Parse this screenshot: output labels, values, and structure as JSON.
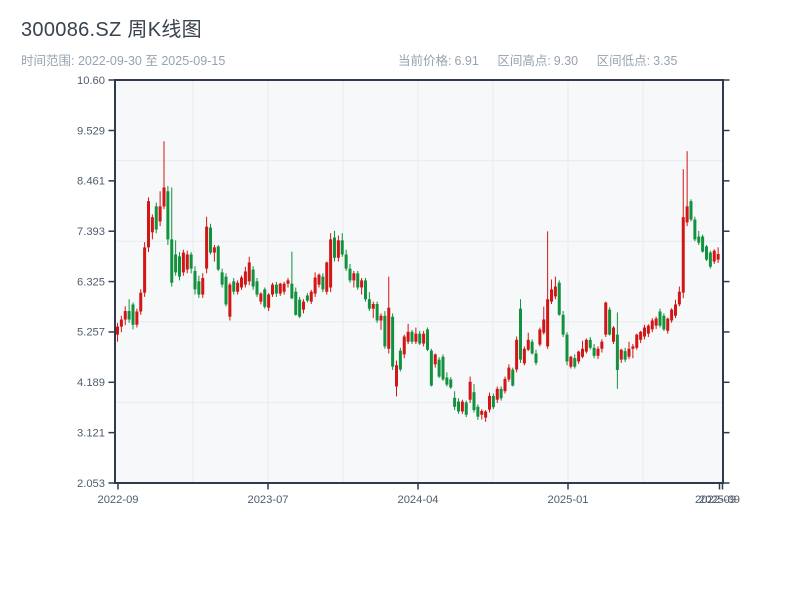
{
  "header": {
    "title": "300086.SZ 周K线图",
    "date_range": "时间范围: 2022-09-30 至 2025-09-15",
    "stats": [
      {
        "label": "当前价格:",
        "value": "6.91"
      },
      {
        "label": "区间高点:",
        "value": "9.30"
      },
      {
        "label": "区间低点:",
        "value": "3.35"
      }
    ]
  },
  "chart_data": {
    "type": "candlestick",
    "title": "300086.SZ 周K线图",
    "frequency": "weekly",
    "symbol": "300086.SZ",
    "current_price": 6.91,
    "range_high": 9.3,
    "range_low": 3.35,
    "x_axis": {
      "tick_labels": [
        "2022-09",
        "2023-07",
        "2024-04",
        "2025-01",
        "2025-09"
      ],
      "overlapped_extra_label": "2022-09"
    },
    "y_axis": {
      "tick_labels": [
        "10.60",
        "9.529",
        "8.461",
        "7.393",
        "6.325",
        "5.257",
        "4.189",
        "3.121",
        "2.053"
      ],
      "range": [
        2.053,
        10.6
      ]
    },
    "colors": {
      "up": "#d21515",
      "down": "#12913e",
      "plot_bg": "#f7f8fa",
      "grid": "#e7eaee",
      "axis": "#2e3b4e",
      "tick_text": "#505d6b"
    },
    "grid": {
      "h_divisions": 5,
      "v_half_tick_spacing_px": 75
    },
    "candles_ohlc": [
      [
        5.2,
        5.45,
        5.05,
        5.37
      ],
      [
        5.37,
        5.6,
        5.25,
        5.52
      ],
      [
        5.52,
        5.8,
        5.4,
        5.7
      ],
      [
        5.7,
        5.95,
        5.45,
        5.52
      ],
      [
        5.84,
        5.88,
        5.31,
        5.41
      ],
      [
        5.41,
        5.75,
        5.35,
        5.69
      ],
      [
        5.69,
        6.16,
        5.62,
        6.09
      ],
      [
        6.09,
        7.16,
        6.0,
        7.05
      ],
      [
        7.05,
        8.11,
        6.95,
        8.03
      ],
      [
        7.37,
        7.75,
        7.22,
        7.69
      ],
      [
        7.92,
        8.0,
        7.35,
        7.43
      ],
      [
        7.6,
        8.24,
        7.5,
        7.92
      ],
      [
        7.92,
        9.3,
        7.86,
        8.32
      ],
      [
        8.24,
        8.35,
        7.1,
        7.22
      ],
      [
        7.22,
        8.32,
        6.22,
        6.3
      ],
      [
        6.9,
        7.2,
        6.45,
        6.52
      ],
      [
        6.86,
        6.95,
        6.35,
        6.43
      ],
      [
        6.52,
        7.0,
        6.45,
        6.94
      ],
      [
        6.58,
        6.98,
        6.5,
        6.9
      ],
      [
        6.9,
        6.95,
        6.5,
        6.6
      ],
      [
        6.55,
        6.65,
        6.05,
        6.16
      ],
      [
        6.33,
        6.45,
        5.98,
        6.05
      ],
      [
        6.05,
        6.5,
        5.98,
        6.4
      ],
      [
        6.6,
        7.7,
        6.5,
        7.49
      ],
      [
        7.47,
        7.55,
        6.9,
        6.94
      ],
      [
        6.94,
        7.1,
        6.75,
        7.05
      ],
      [
        7.07,
        7.1,
        6.55,
        6.58
      ],
      [
        6.52,
        6.6,
        6.2,
        6.26
      ],
      [
        6.43,
        6.5,
        5.8,
        5.84
      ],
      [
        5.58,
        6.3,
        5.5,
        6.26
      ],
      [
        6.33,
        6.4,
        6.05,
        6.11
      ],
      [
        6.11,
        6.35,
        6.05,
        6.3
      ],
      [
        6.2,
        6.45,
        6.15,
        6.41
      ],
      [
        6.26,
        6.64,
        6.2,
        6.54
      ],
      [
        6.33,
        6.85,
        6.25,
        6.73
      ],
      [
        6.58,
        6.65,
        6.15,
        6.22
      ],
      [
        6.33,
        6.4,
        6.0,
        6.05
      ],
      [
        5.9,
        6.1,
        5.84,
        6.07
      ],
      [
        6.16,
        6.2,
        5.75,
        5.79
      ],
      [
        5.77,
        6.08,
        5.7,
        6.05
      ],
      [
        6.05,
        6.3,
        6.0,
        6.26
      ],
      [
        6.26,
        6.32,
        6.0,
        6.07
      ],
      [
        6.07,
        6.3,
        6.02,
        6.28
      ],
      [
        6.11,
        6.32,
        6.05,
        6.28
      ],
      [
        6.28,
        6.4,
        6.2,
        6.35
      ],
      [
        6.28,
        6.96,
        5.95,
        5.97
      ],
      [
        6.11,
        6.2,
        5.6,
        5.62
      ],
      [
        5.94,
        6.0,
        5.55,
        5.58
      ],
      [
        5.73,
        5.95,
        5.65,
        5.9
      ],
      [
        6.03,
        6.08,
        5.88,
        5.92
      ],
      [
        5.9,
        6.15,
        5.85,
        6.11
      ],
      [
        6.07,
        6.52,
        6.0,
        6.41
      ],
      [
        6.26,
        6.5,
        6.2,
        6.47
      ],
      [
        6.43,
        6.5,
        6.1,
        6.16
      ],
      [
        6.11,
        6.75,
        6.05,
        6.73
      ],
      [
        6.2,
        7.35,
        6.1,
        7.22
      ],
      [
        7.26,
        7.4,
        6.75,
        6.83
      ],
      [
        6.83,
        7.3,
        6.75,
        7.2
      ],
      [
        7.2,
        7.35,
        6.85,
        6.9
      ],
      [
        6.9,
        7.0,
        6.55,
        6.6
      ],
      [
        6.6,
        6.7,
        6.3,
        6.35
      ],
      [
        6.35,
        6.55,
        6.2,
        6.5
      ],
      [
        6.5,
        6.55,
        6.15,
        6.2
      ],
      [
        6.2,
        6.4,
        6.05,
        6.35
      ],
      [
        6.35,
        6.4,
        5.9,
        5.95
      ],
      [
        5.95,
        6.1,
        5.7,
        5.75
      ],
      [
        5.75,
        5.9,
        5.55,
        5.85
      ],
      [
        5.85,
        5.9,
        5.45,
        5.5
      ],
      [
        5.5,
        5.65,
        5.3,
        5.6
      ],
      [
        5.6,
        5.7,
        4.9,
        4.95
      ],
      [
        4.9,
        6.43,
        4.8,
        5.77
      ],
      [
        5.58,
        5.65,
        4.45,
        4.52
      ],
      [
        4.1,
        4.65,
        3.89,
        4.55
      ],
      [
        4.86,
        4.92,
        4.42,
        4.46
      ],
      [
        4.78,
        5.2,
        4.7,
        5.16
      ],
      [
        5.05,
        5.43,
        5.0,
        5.26
      ],
      [
        5.26,
        5.3,
        5.0,
        5.05
      ],
      [
        5.05,
        5.35,
        5.0,
        5.22
      ],
      [
        5.22,
        5.28,
        4.98,
        5.01
      ],
      [
        5.01,
        5.28,
        4.95,
        5.22
      ],
      [
        5.31,
        5.35,
        4.85,
        4.88
      ],
      [
        4.86,
        4.9,
        4.1,
        4.12
      ],
      [
        4.57,
        4.8,
        4.5,
        4.78
      ],
      [
        4.67,
        4.72,
        4.28,
        4.31
      ],
      [
        4.73,
        4.78,
        4.22,
        4.25
      ],
      [
        4.29,
        4.4,
        4.1,
        4.14
      ],
      [
        4.25,
        4.3,
        4.05,
        4.08
      ],
      [
        3.86,
        4.0,
        3.6,
        3.67
      ],
      [
        3.78,
        3.85,
        3.52,
        3.57
      ],
      [
        3.57,
        3.82,
        3.52,
        3.78
      ],
      [
        3.76,
        3.8,
        3.45,
        3.5
      ],
      [
        3.82,
        4.31,
        3.75,
        4.2
      ],
      [
        3.98,
        4.15,
        3.55,
        3.6
      ],
      [
        3.67,
        3.72,
        3.39,
        3.46
      ],
      [
        3.5,
        3.62,
        3.4,
        3.58
      ],
      [
        3.44,
        3.6,
        3.35,
        3.57
      ],
      [
        3.61,
        3.97,
        3.55,
        3.9
      ],
      [
        3.9,
        3.95,
        3.62,
        3.66
      ],
      [
        3.82,
        4.1,
        3.75,
        4.05
      ],
      [
        4.05,
        4.1,
        3.8,
        3.85
      ],
      [
        4.0,
        4.31,
        3.95,
        4.26
      ],
      [
        4.25,
        4.57,
        4.2,
        4.5
      ],
      [
        4.46,
        4.5,
        4.1,
        4.12
      ],
      [
        4.46,
        5.16,
        4.4,
        5.09
      ],
      [
        5.75,
        5.95,
        4.6,
        4.67
      ],
      [
        4.59,
        4.95,
        4.55,
        4.9
      ],
      [
        4.88,
        5.24,
        4.85,
        5.09
      ],
      [
        5.05,
        5.1,
        4.78,
        4.8
      ],
      [
        4.8,
        4.88,
        4.55,
        4.6
      ],
      [
        4.99,
        5.35,
        4.95,
        5.31
      ],
      [
        5.24,
        5.79,
        5.2,
        5.52
      ],
      [
        4.95,
        7.39,
        4.9,
        5.95
      ],
      [
        5.9,
        6.37,
        5.85,
        6.16
      ],
      [
        6.01,
        6.43,
        5.95,
        6.22
      ],
      [
        6.3,
        6.35,
        5.6,
        5.62
      ],
      [
        5.62,
        5.7,
        5.15,
        5.2
      ],
      [
        5.2,
        5.25,
        4.55,
        4.63
      ],
      [
        4.52,
        4.75,
        4.48,
        4.73
      ],
      [
        4.7,
        4.78,
        4.48,
        4.52
      ],
      [
        4.63,
        4.86,
        4.58,
        4.84
      ],
      [
        4.73,
        5.07,
        4.7,
        4.9
      ],
      [
        4.84,
        5.12,
        4.8,
        5.09
      ],
      [
        5.09,
        5.15,
        4.88,
        4.92
      ],
      [
        4.92,
        5.0,
        4.7,
        4.75
      ],
      [
        4.75,
        4.95,
        4.68,
        4.9
      ],
      [
        4.9,
        5.1,
        4.82,
        5.05
      ],
      [
        5.2,
        5.9,
        5.15,
        5.88
      ],
      [
        5.73,
        5.78,
        5.18,
        5.2
      ],
      [
        5.05,
        5.38,
        5.0,
        5.35
      ],
      [
        5.2,
        5.67,
        4.05,
        4.45
      ],
      [
        4.67,
        4.9,
        4.6,
        4.88
      ],
      [
        4.85,
        4.92,
        4.62,
        4.67
      ],
      [
        4.73,
        5.05,
        4.68,
        4.9
      ],
      [
        4.9,
        5.0,
        4.7,
        4.95
      ],
      [
        4.92,
        5.22,
        4.88,
        5.2
      ],
      [
        5.09,
        5.28,
        5.02,
        5.26
      ],
      [
        5.16,
        5.41,
        5.1,
        5.35
      ],
      [
        5.22,
        5.42,
        5.15,
        5.39
      ],
      [
        5.31,
        5.55,
        5.25,
        5.5
      ],
      [
        5.39,
        5.58,
        5.32,
        5.54
      ],
      [
        5.69,
        5.75,
        5.35,
        5.39
      ],
      [
        5.6,
        5.65,
        5.28,
        5.31
      ],
      [
        5.28,
        5.56,
        5.22,
        5.54
      ],
      [
        5.5,
        5.76,
        5.45,
        5.73
      ],
      [
        5.6,
        5.94,
        5.55,
        5.84
      ],
      [
        5.84,
        6.22,
        5.8,
        6.11
      ],
      [
        6.09,
        8.71,
        5.97,
        7.69
      ],
      [
        7.58,
        9.09,
        7.5,
        7.92
      ],
      [
        8.03,
        8.07,
        7.6,
        7.64
      ],
      [
        7.64,
        7.7,
        7.18,
        7.22
      ],
      [
        7.28,
        7.4,
        7.1,
        7.15
      ],
      [
        7.28,
        7.32,
        6.94,
        6.96
      ],
      [
        7.07,
        7.1,
        6.76,
        6.79
      ],
      [
        6.94,
        6.98,
        6.6,
        6.64
      ],
      [
        6.75,
        7.01,
        6.7,
        6.98
      ],
      [
        6.79,
        7.05,
        6.72,
        6.91
      ]
    ]
  }
}
